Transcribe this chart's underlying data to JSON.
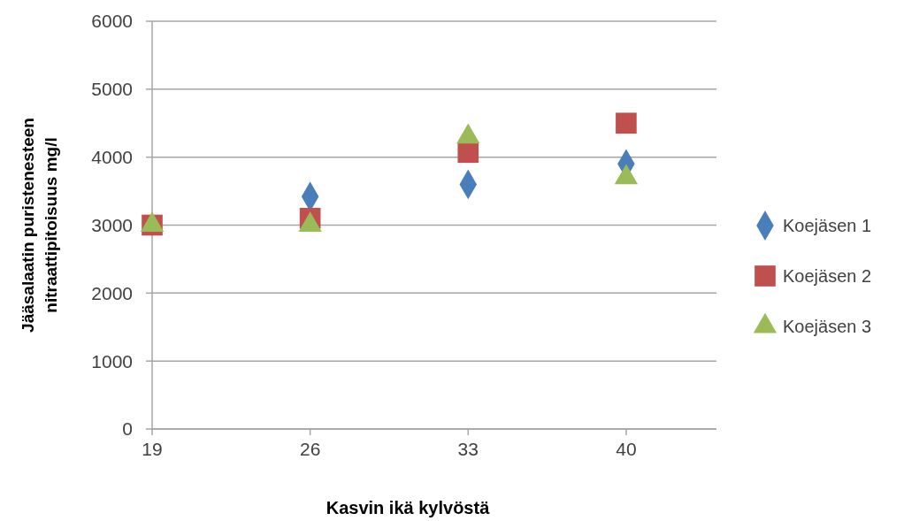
{
  "chart_data": {
    "type": "scatter",
    "xlabel": "Kasvin ikä kylvöstä",
    "ylabel": "Jääsalaatin puristenesteen\nnitraattipitoisuus  mg/l",
    "x": [
      19,
      26,
      33,
      40
    ],
    "xlim": [
      19,
      44
    ],
    "xticks": [
      19,
      26,
      33,
      40
    ],
    "ylim": [
      0,
      6000
    ],
    "yticks": [
      0,
      1000,
      2000,
      3000,
      4000,
      5000,
      6000
    ],
    "grid": "y",
    "legend": "right",
    "series": [
      {
        "name": "Koejäsen 1",
        "color": "#4a7ebb",
        "marker": "diamond",
        "values": [
          null,
          3420,
          3600,
          3900
        ]
      },
      {
        "name": "Koejäsen 2",
        "color": "#c0504d",
        "marker": "square",
        "values": [
          3000,
          3100,
          4070,
          4500
        ]
      },
      {
        "name": "Koejäsen 3",
        "color": "#9bbb59",
        "marker": "triangle",
        "values": [
          3000,
          3000,
          4300,
          3700
        ]
      }
    ]
  }
}
